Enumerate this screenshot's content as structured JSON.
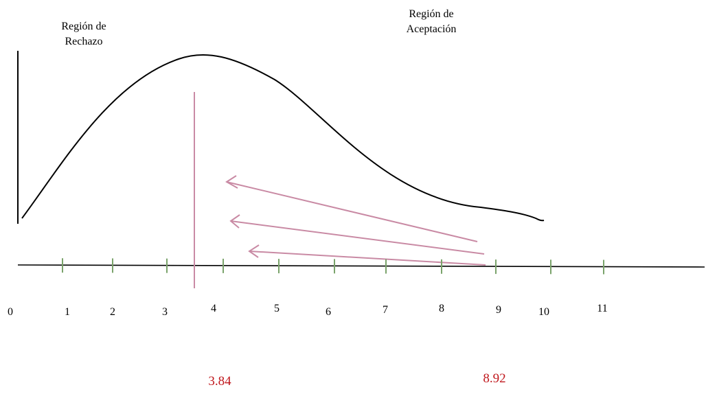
{
  "diagram": {
    "rejection_label": {
      "line1": "Región de",
      "line2": "Rechazo"
    },
    "acceptance_label": {
      "line1": "Región de",
      "line2": "Aceptación"
    },
    "tick_labels": [
      "0",
      "1",
      "2",
      "3",
      "4",
      "5",
      "6",
      "7",
      "8",
      "9",
      "10",
      "11"
    ],
    "critical_value": "3.84",
    "test_statistic": "8.92",
    "colors": {
      "axis": "#000000",
      "curve": "#000000",
      "ticks": "#7aa36b",
      "critical_line": "#c98aa4",
      "arrows": "#c98aa4",
      "value_text": "#c0171c"
    }
  }
}
